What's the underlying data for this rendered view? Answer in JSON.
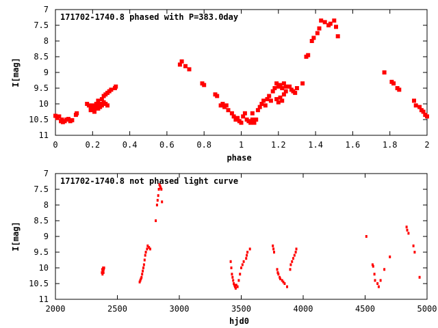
{
  "chart_data": [
    {
      "type": "scatter",
      "title": "171702-1740.8 phased with P=383.0day",
      "xlabel": "phase",
      "ylabel": "I[mag]",
      "xlim": [
        0,
        2
      ],
      "ylim": [
        11,
        7
      ],
      "y_inverted": true,
      "xticks": [
        "0",
        "0.2",
        "0.4",
        "0.6",
        "0.8",
        "1",
        "1.2",
        "1.4",
        "1.6",
        "1.8",
        "2"
      ],
      "yticks": [
        "7",
        "7.5",
        "8",
        "8.5",
        "9",
        "9.5",
        "10",
        "10.5",
        "11"
      ],
      "grid": false,
      "marker_color": "#ff0000",
      "series": [
        {
          "points": [
            [
              0.0,
              10.38
            ],
            [
              0.01,
              10.45
            ],
            [
              0.02,
              10.4
            ],
            [
              0.03,
              10.55
            ],
            [
              0.035,
              10.5
            ],
            [
              0.04,
              10.58
            ],
            [
              0.05,
              10.55
            ],
            [
              0.06,
              10.5
            ],
            [
              0.07,
              10.48
            ],
            [
              0.08,
              10.55
            ],
            [
              0.09,
              10.52
            ],
            [
              0.11,
              10.35
            ],
            [
              0.115,
              10.3
            ],
            [
              0.17,
              10.0
            ],
            [
              0.18,
              10.05
            ],
            [
              0.19,
              10.1
            ],
            [
              0.19,
              10.2
            ],
            [
              0.2,
              10.05
            ],
            [
              0.21,
              10.15
            ],
            [
              0.21,
              10.25
            ],
            [
              0.22,
              10.0
            ],
            [
              0.22,
              10.1
            ],
            [
              0.23,
              10.15
            ],
            [
              0.23,
              9.9
            ],
            [
              0.24,
              10.0
            ],
            [
              0.24,
              10.1
            ],
            [
              0.25,
              9.85
            ],
            [
              0.25,
              10.05
            ],
            [
              0.26,
              9.75
            ],
            [
              0.26,
              9.95
            ],
            [
              0.27,
              10.0
            ],
            [
              0.27,
              9.7
            ],
            [
              0.28,
              10.05
            ],
            [
              0.28,
              9.65
            ],
            [
              0.29,
              9.6
            ],
            [
              0.3,
              9.55
            ],
            [
              0.32,
              9.5
            ],
            [
              0.325,
              9.45
            ],
            [
              0.67,
              8.75
            ],
            [
              0.68,
              8.65
            ],
            [
              0.7,
              8.8
            ],
            [
              0.72,
              8.9
            ],
            [
              0.79,
              9.35
            ],
            [
              0.8,
              9.4
            ],
            [
              0.86,
              9.7
            ],
            [
              0.87,
              9.75
            ],
            [
              0.89,
              10.05
            ],
            [
              0.9,
              10.0
            ],
            [
              0.91,
              10.1
            ],
            [
              0.92,
              10.05
            ],
            [
              0.93,
              10.2
            ],
            [
              0.95,
              10.3
            ],
            [
              0.96,
              10.4
            ],
            [
              0.97,
              10.5
            ],
            [
              0.98,
              10.45
            ],
            [
              0.99,
              10.55
            ],
            [
              1.0,
              10.6
            ],
            [
              1.01,
              10.4
            ],
            [
              1.02,
              10.3
            ],
            [
              1.03,
              10.5
            ],
            [
              1.04,
              10.55
            ],
            [
              1.05,
              10.6
            ],
            [
              1.06,
              10.3
            ],
            [
              1.06,
              10.5
            ],
            [
              1.07,
              10.6
            ],
            [
              1.08,
              10.5
            ],
            [
              1.09,
              10.2
            ],
            [
              1.1,
              10.1
            ],
            [
              1.11,
              10.0
            ],
            [
              1.12,
              9.9
            ],
            [
              1.13,
              10.05
            ],
            [
              1.14,
              9.85
            ],
            [
              1.15,
              9.75
            ],
            [
              1.16,
              9.9
            ],
            [
              1.17,
              9.6
            ],
            [
              1.18,
              9.5
            ],
            [
              1.19,
              9.85
            ],
            [
              1.19,
              9.35
            ],
            [
              1.2,
              9.45
            ],
            [
              1.2,
              9.95
            ],
            [
              1.21,
              9.4
            ],
            [
              1.21,
              9.8
            ],
            [
              1.22,
              9.5
            ],
            [
              1.22,
              9.9
            ],
            [
              1.23,
              9.35
            ],
            [
              1.23,
              9.7
            ],
            [
              1.24,
              9.45
            ],
            [
              1.24,
              9.6
            ],
            [
              1.26,
              9.45
            ],
            [
              1.27,
              9.55
            ],
            [
              1.28,
              9.6
            ],
            [
              1.29,
              9.65
            ],
            [
              1.3,
              9.5
            ],
            [
              1.33,
              9.35
            ],
            [
              1.35,
              8.5
            ],
            [
              1.36,
              8.45
            ],
            [
              1.38,
              8.0
            ],
            [
              1.39,
              7.9
            ],
            [
              1.41,
              7.75
            ],
            [
              1.42,
              7.6
            ],
            [
              1.43,
              7.35
            ],
            [
              1.45,
              7.4
            ],
            [
              1.47,
              7.5
            ],
            [
              1.48,
              7.45
            ],
            [
              1.5,
              7.35
            ],
            [
              1.51,
              7.55
            ],
            [
              1.52,
              7.85
            ],
            [
              1.77,
              9.0
            ],
            [
              1.81,
              9.3
            ],
            [
              1.82,
              9.35
            ],
            [
              1.84,
              9.5
            ],
            [
              1.85,
              9.55
            ],
            [
              1.93,
              9.9
            ],
            [
              1.94,
              10.05
            ],
            [
              1.96,
              10.1
            ],
            [
              1.97,
              10.2
            ],
            [
              1.98,
              10.25
            ],
            [
              1.99,
              10.35
            ],
            [
              2.0,
              10.4
            ]
          ]
        }
      ]
    },
    {
      "type": "scatter",
      "title": "171702-1740.8 not phased light curve",
      "xlabel": "hjd0",
      "ylabel": "I[mag]",
      "xlim": [
        2000,
        5000
      ],
      "ylim": [
        11,
        7
      ],
      "y_inverted": true,
      "xticks": [
        "2000",
        "2500",
        "3000",
        "3500",
        "4000",
        "4500",
        "5000"
      ],
      "yticks": [
        "7",
        "7.5",
        "8",
        "8.5",
        "9",
        "9.5",
        "10",
        "10.5",
        "11"
      ],
      "grid": false,
      "marker_color": "#ff0000",
      "series": [
        {
          "points": [
            [
              2375,
              10.15
            ],
            [
              2378,
              10.05
            ],
            [
              2380,
              10.2
            ],
            [
              2383,
              10.1
            ],
            [
              2385,
              10.0
            ],
            [
              2388,
              10.15
            ],
            [
              2390,
              10.05
            ],
            [
              2393,
              10.0
            ],
            [
              2680,
              10.45
            ],
            [
              2685,
              10.4
            ],
            [
              2690,
              10.35
            ],
            [
              2695,
              10.3
            ],
            [
              2700,
              10.2
            ],
            [
              2705,
              10.1
            ],
            [
              2710,
              10.0
            ],
            [
              2715,
              9.9
            ],
            [
              2720,
              9.75
            ],
            [
              2725,
              9.6
            ],
            [
              2730,
              9.5
            ],
            [
              2740,
              9.4
            ],
            [
              2745,
              9.3
            ],
            [
              2755,
              9.35
            ],
            [
              2765,
              9.4
            ],
            [
              2810,
              8.5
            ],
            [
              2820,
              8.0
            ],
            [
              2825,
              7.85
            ],
            [
              2830,
              7.7
            ],
            [
              2835,
              7.5
            ],
            [
              2840,
              7.35
            ],
            [
              2845,
              7.4
            ],
            [
              2850,
              7.45
            ],
            [
              2855,
              7.5
            ],
            [
              2860,
              7.9
            ],
            [
              3415,
              9.8
            ],
            [
              3420,
              10.0
            ],
            [
              3425,
              10.2
            ],
            [
              3430,
              10.3
            ],
            [
              3435,
              10.4
            ],
            [
              3440,
              10.5
            ],
            [
              3445,
              10.55
            ],
            [
              3450,
              10.6
            ],
            [
              3455,
              10.65
            ],
            [
              3460,
              10.55
            ],
            [
              3470,
              10.6
            ],
            [
              3480,
              10.4
            ],
            [
              3490,
              10.2
            ],
            [
              3500,
              10.0
            ],
            [
              3510,
              9.9
            ],
            [
              3520,
              9.8
            ],
            [
              3540,
              9.7
            ],
            [
              3545,
              9.6
            ],
            [
              3550,
              9.5
            ],
            [
              3570,
              9.4
            ],
            [
              3755,
              9.3
            ],
            [
              3760,
              9.4
            ],
            [
              3765,
              9.5
            ],
            [
              3790,
              10.05
            ],
            [
              3795,
              10.15
            ],
            [
              3800,
              10.2
            ],
            [
              3810,
              10.3
            ],
            [
              3815,
              10.35
            ],
            [
              3830,
              10.4
            ],
            [
              3840,
              10.45
            ],
            [
              3850,
              10.5
            ],
            [
              3870,
              10.6
            ],
            [
              3895,
              10.05
            ],
            [
              3900,
              9.9
            ],
            [
              3910,
              9.8
            ],
            [
              3920,
              9.7
            ],
            [
              3930,
              9.6
            ],
            [
              3940,
              9.5
            ],
            [
              3945,
              9.4
            ],
            [
              4510,
              9.0
            ],
            [
              4560,
              9.9
            ],
            [
              4565,
              9.95
            ],
            [
              4575,
              10.2
            ],
            [
              4580,
              10.4
            ],
            [
              4600,
              10.5
            ],
            [
              4610,
              10.6
            ],
            [
              4625,
              10.4
            ],
            [
              4655,
              10.05
            ],
            [
              4700,
              9.65
            ],
            [
              4835,
              8.7
            ],
            [
              4840,
              8.8
            ],
            [
              4850,
              8.9
            ],
            [
              4890,
              9.3
            ],
            [
              4900,
              9.5
            ],
            [
              4940,
              10.3
            ]
          ]
        }
      ]
    }
  ]
}
